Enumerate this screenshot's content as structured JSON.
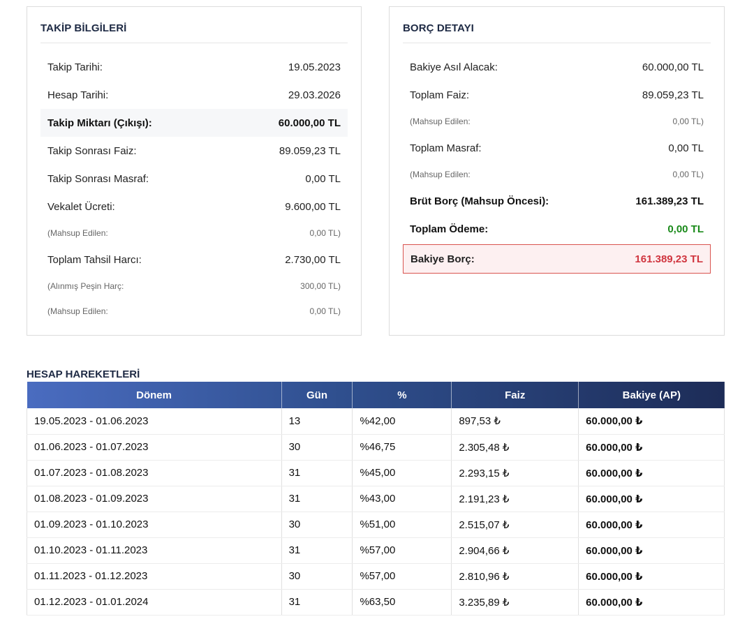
{
  "takip": {
    "title": "TAKİP BİLGİLERİ",
    "rows": [
      {
        "label": "Takip Tarihi:",
        "value": "19.05.2023"
      },
      {
        "label": "Hesap Tarihi:",
        "value": "29.03.2026"
      },
      {
        "label": "Takip Miktarı (Çıkışı):",
        "value": "60.000,00 TL"
      },
      {
        "label": "Takip Sonrası Faiz:",
        "value": "89.059,23 TL"
      },
      {
        "label": "Takip Sonrası Masraf:",
        "value": "0,00 TL"
      },
      {
        "label": "Vekalet Ücreti:",
        "value": "9.600,00 TL"
      },
      {
        "label": "(Mahsup Edilen:",
        "value": "0,00 TL)"
      },
      {
        "label": "Toplam Tahsil Harcı:",
        "value": "2.730,00 TL"
      },
      {
        "label": "(Alınmış Peşin Harç:",
        "value": "300,00 TL)"
      },
      {
        "label": "(Mahsup Edilen:",
        "value": "0,00 TL)"
      }
    ]
  },
  "borc": {
    "title": "BORÇ DETAYI",
    "rows": [
      {
        "label": "Bakiye Asıl Alacak:",
        "value": "60.000,00 TL"
      },
      {
        "label": "Toplam Faiz:",
        "value": "89.059,23 TL"
      },
      {
        "label": "(Mahsup Edilen:",
        "value": "0,00 TL)"
      },
      {
        "label": "Toplam Masraf:",
        "value": "0,00 TL"
      },
      {
        "label": "(Mahsup Edilen:",
        "value": "0,00 TL)"
      },
      {
        "label": "Brüt Borç (Mahsup Öncesi):",
        "value": "161.389,23 TL"
      },
      {
        "label": "Toplam Ödeme:",
        "value": "0,00 TL"
      },
      {
        "label": "Bakiye Borç:",
        "value": "161.389,23 TL"
      }
    ]
  },
  "hesap": {
    "title": "HESAP HAREKETLERİ",
    "headers": [
      "Dönem",
      "Gün",
      "%",
      "Faiz",
      "Bakiye (AP)"
    ],
    "rows": [
      [
        "19.05.2023 - 01.06.2023",
        "13",
        "%42,00",
        "897,53 ₺",
        "60.000,00 ₺"
      ],
      [
        "01.06.2023 - 01.07.2023",
        "30",
        "%46,75",
        "2.305,48 ₺",
        "60.000,00 ₺"
      ],
      [
        "01.07.2023 - 01.08.2023",
        "31",
        "%45,00",
        "2.293,15 ₺",
        "60.000,00 ₺"
      ],
      [
        "01.08.2023 - 01.09.2023",
        "31",
        "%43,00",
        "2.191,23 ₺",
        "60.000,00 ₺"
      ],
      [
        "01.09.2023 - 01.10.2023",
        "30",
        "%51,00",
        "2.515,07 ₺",
        "60.000,00 ₺"
      ],
      [
        "01.10.2023 - 01.11.2023",
        "31",
        "%57,00",
        "2.904,66 ₺",
        "60.000,00 ₺"
      ],
      [
        "01.11.2023 - 01.12.2023",
        "30",
        "%57,00",
        "2.810,96 ₺",
        "60.000,00 ₺"
      ],
      [
        "01.12.2023 - 01.01.2024",
        "31",
        "%63,50",
        "3.235,89 ₺",
        "60.000,00 ₺"
      ]
    ]
  },
  "colors": {
    "header_gradient_start": "#4a6cc0",
    "header_gradient_end": "#1d2c57",
    "payment_green": "#1a8a1a",
    "debt_red": "#d0353f",
    "debt_box_bg": "#fdf0f1"
  }
}
